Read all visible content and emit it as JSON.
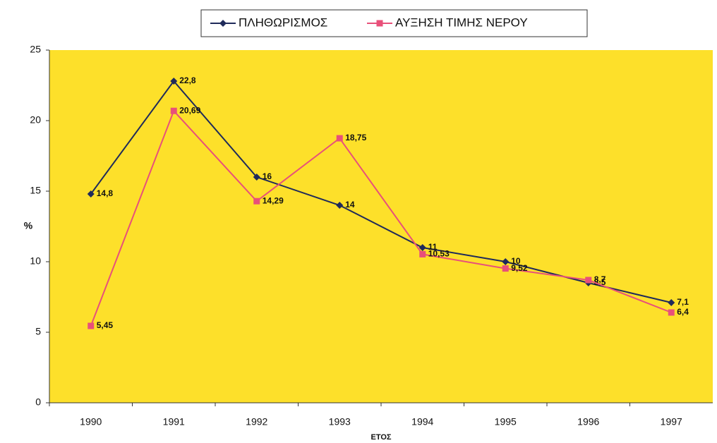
{
  "chart_data": {
    "type": "line",
    "categories": [
      "1990",
      "1991",
      "1992",
      "1993",
      "1994",
      "1995",
      "1996",
      "1997"
    ],
    "series": [
      {
        "name": "ΠΛΗΘΩΡΙΣΜΟΣ",
        "color": "#1f2a5a",
        "marker": "diamond",
        "values": [
          14.8,
          22.8,
          16,
          14,
          11,
          10,
          8.5,
          7.1
        ],
        "value_labels": [
          "14,8",
          "22,8",
          "16",
          "14",
          "11",
          "10",
          "8,5",
          "7,1"
        ]
      },
      {
        "name": "ΑΥΞΗΣΗ ΤΙΜΗΣ ΝΕΡΟΥ",
        "color": "#e8507a",
        "marker": "square",
        "values": [
          5.45,
          20.69,
          14.29,
          18.75,
          10.53,
          9.52,
          8.7,
          6.4
        ],
        "value_labels": [
          "5,45",
          "20,69",
          "14,29",
          "18,75",
          "10,53",
          "9,52",
          "8,7",
          "6,4"
        ]
      }
    ],
    "x_label": "ΕΤΟΣ",
    "y_label": "%",
    "ylim": [
      0,
      25
    ],
    "yticks": [
      0,
      5,
      10,
      15,
      20,
      25
    ],
    "background": "#fde02a",
    "legend": "top"
  }
}
